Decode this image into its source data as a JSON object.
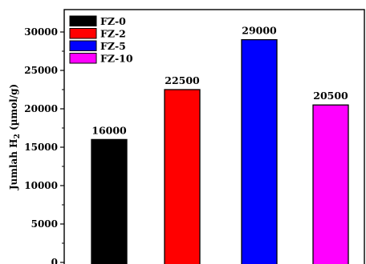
{
  "chart_data": {
    "type": "bar",
    "categories": [
      "FZ-0",
      "FZ-2",
      "FZ-5",
      "FZ-10"
    ],
    "values": [
      16000,
      22500,
      29000,
      20500
    ],
    "data_labels": [
      "16000",
      "22500",
      "29000",
      "20500"
    ],
    "colors": [
      "#000000",
      "#ff0000",
      "#0000ff",
      "#ff00ff"
    ],
    "legend": [
      "FZ-0",
      "FZ-2",
      "FZ-5",
      "FZ-10"
    ],
    "legend_position": "top-left",
    "ylabel_main": "Jumlah H",
    "ylabel_sub": "2",
    "ylabel_unit": " (µmol/g)",
    "yticks": [
      "0",
      "5000",
      "10000",
      "15000",
      "20000",
      "25000",
      "30000"
    ],
    "ylim": [
      0,
      32000
    ],
    "grid": false
  }
}
